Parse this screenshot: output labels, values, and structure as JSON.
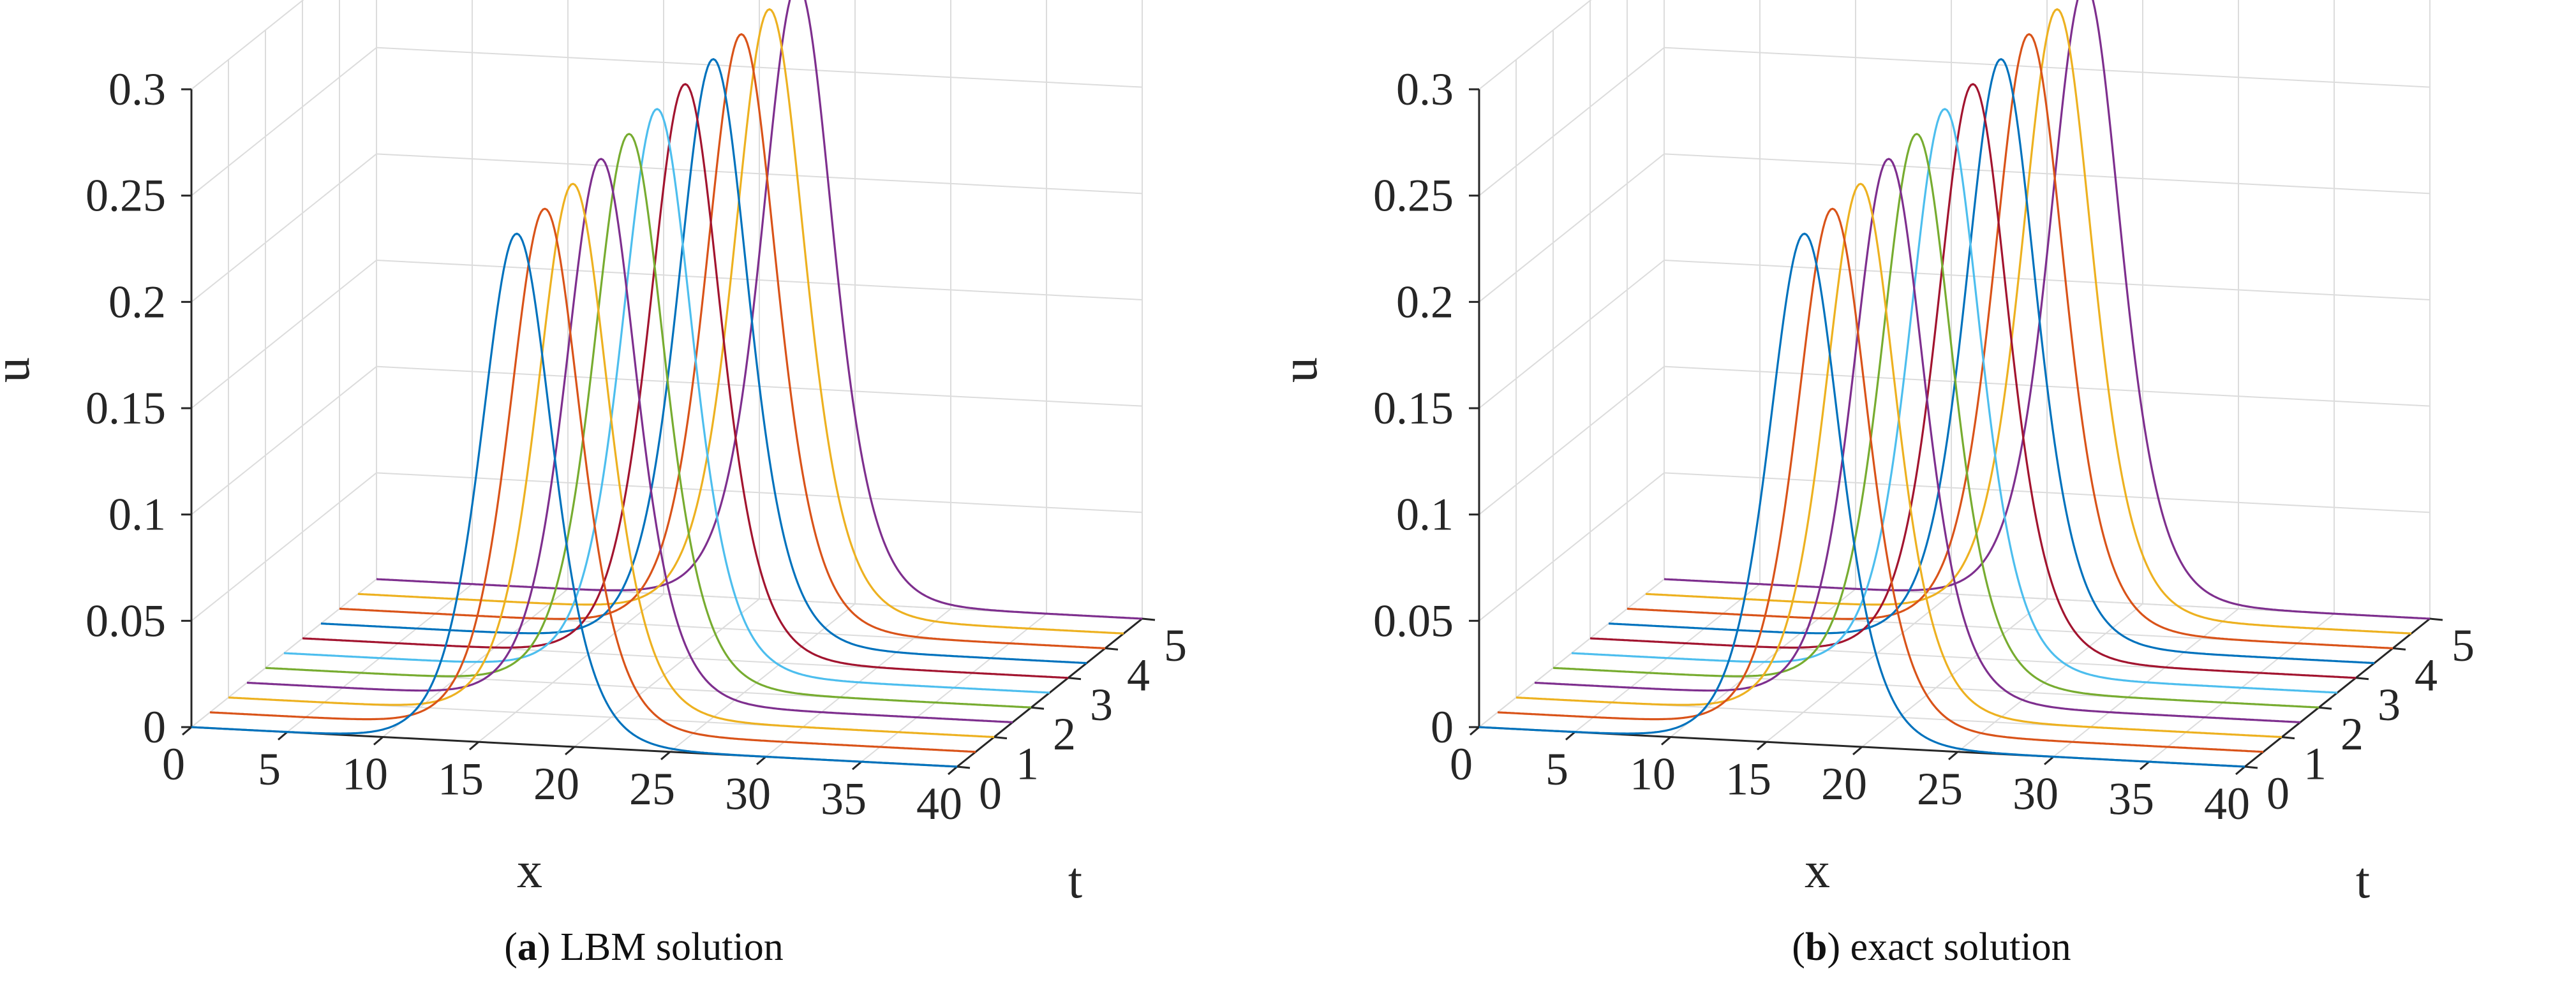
{
  "captions": [
    {
      "prefix": "(",
      "letter": "a",
      "suffix": ") ",
      "text": "LBM solution"
    },
    {
      "prefix": "(",
      "letter": "b",
      "suffix": ") ",
      "text": "exact solution"
    }
  ],
  "chart_data": [
    {
      "type": "line3d",
      "title": "",
      "xlabel": "x",
      "ylabel": "t",
      "zlabel": "u",
      "xlim": [
        0,
        40
      ],
      "ylim": [
        0,
        5
      ],
      "zlim": [
        0,
        0.3
      ],
      "xticks": [
        "0",
        "5",
        "10",
        "15",
        "20",
        "25",
        "30",
        "35",
        "40"
      ],
      "yticks": [
        "0",
        "1",
        "2",
        "3",
        "4",
        "5"
      ],
      "zticks": [
        "0",
        "0.05",
        "0.1",
        "0.15",
        "0.2",
        "0.25",
        "0.3"
      ],
      "series": [
        {
          "name": "t=0.0",
          "t": 0.0,
          "peak_x": 17.0,
          "peak_u": 0.24,
          "color": "#0072BD"
        },
        {
          "name": "t=0.5",
          "t": 0.5,
          "peak_x": 17.5,
          "peak_u": 0.245,
          "color": "#D95319"
        },
        {
          "name": "t=1.0",
          "t": 1.0,
          "peak_x": 18.0,
          "peak_u": 0.25,
          "color": "#EDB120"
        },
        {
          "name": "t=1.5",
          "t": 1.5,
          "peak_x": 18.5,
          "peak_u": 0.255,
          "color": "#7E2F8E"
        },
        {
          "name": "t=2.0",
          "t": 2.0,
          "peak_x": 19.0,
          "peak_u": 0.26,
          "color": "#77AC30"
        },
        {
          "name": "t=2.5",
          "t": 2.5,
          "peak_x": 19.5,
          "peak_u": 0.265,
          "color": "#4DBEEE"
        },
        {
          "name": "t=3.0",
          "t": 3.0,
          "peak_x": 20.0,
          "peak_u": 0.27,
          "color": "#A2142F"
        },
        {
          "name": "t=3.5",
          "t": 3.5,
          "peak_x": 20.5,
          "peak_u": 0.275,
          "color": "#0072BD"
        },
        {
          "name": "t=4.0",
          "t": 4.0,
          "peak_x": 21.0,
          "peak_u": 0.28,
          "color": "#D95319"
        },
        {
          "name": "t=4.5",
          "t": 4.5,
          "peak_x": 21.5,
          "peak_u": 0.285,
          "color": "#EDB120"
        },
        {
          "name": "t=5.0",
          "t": 5.0,
          "peak_x": 22.0,
          "peak_u": 0.29,
          "color": "#7E2F8E"
        }
      ],
      "profile": "sech^2",
      "width_x": 2.5
    },
    {
      "type": "line3d",
      "title": "",
      "xlabel": "x",
      "ylabel": "t",
      "zlabel": "u",
      "xlim": [
        0,
        40
      ],
      "ylim": [
        0,
        5
      ],
      "zlim": [
        0,
        0.3
      ],
      "xticks": [
        "0",
        "5",
        "10",
        "15",
        "20",
        "25",
        "30",
        "35",
        "40"
      ],
      "yticks": [
        "0",
        "1",
        "2",
        "3",
        "4",
        "5"
      ],
      "zticks": [
        "0",
        "0.05",
        "0.1",
        "0.15",
        "0.2",
        "0.25",
        "0.3"
      ],
      "series": [
        {
          "name": "t=0.0",
          "t": 0.0,
          "peak_x": 17.0,
          "peak_u": 0.24,
          "color": "#0072BD"
        },
        {
          "name": "t=0.5",
          "t": 0.5,
          "peak_x": 17.5,
          "peak_u": 0.245,
          "color": "#D95319"
        },
        {
          "name": "t=1.0",
          "t": 1.0,
          "peak_x": 18.0,
          "peak_u": 0.25,
          "color": "#EDB120"
        },
        {
          "name": "t=1.5",
          "t": 1.5,
          "peak_x": 18.5,
          "peak_u": 0.255,
          "color": "#7E2F8E"
        },
        {
          "name": "t=2.0",
          "t": 2.0,
          "peak_x": 19.0,
          "peak_u": 0.26,
          "color": "#77AC30"
        },
        {
          "name": "t=2.5",
          "t": 2.5,
          "peak_x": 19.5,
          "peak_u": 0.265,
          "color": "#4DBEEE"
        },
        {
          "name": "t=3.0",
          "t": 3.0,
          "peak_x": 20.0,
          "peak_u": 0.27,
          "color": "#A2142F"
        },
        {
          "name": "t=3.5",
          "t": 3.5,
          "peak_x": 20.5,
          "peak_u": 0.275,
          "color": "#0072BD"
        },
        {
          "name": "t=4.0",
          "t": 4.0,
          "peak_x": 21.0,
          "peak_u": 0.28,
          "color": "#D95319"
        },
        {
          "name": "t=4.5",
          "t": 4.5,
          "peak_x": 21.5,
          "peak_u": 0.285,
          "color": "#EDB120"
        },
        {
          "name": "t=5.0",
          "t": 5.0,
          "peak_x": 22.0,
          "peak_u": 0.29,
          "color": "#7E2F8E"
        }
      ],
      "profile": "sech^2",
      "width_x": 2.5
    }
  ]
}
